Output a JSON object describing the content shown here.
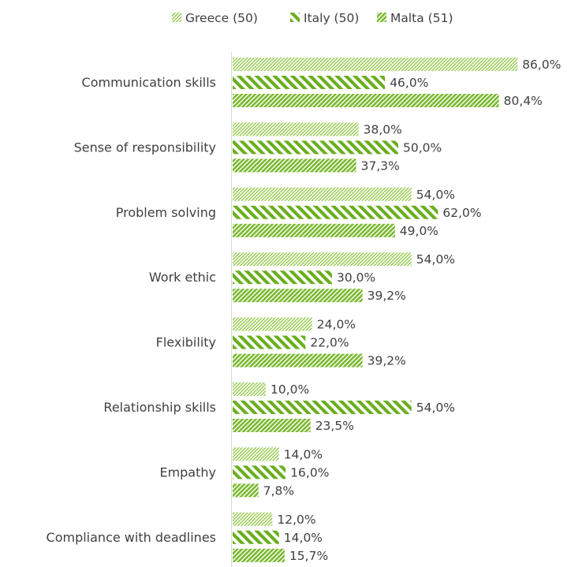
{
  "chart_data": {
    "type": "bar",
    "orientation": "horizontal",
    "categories": [
      "Communication skills",
      "Sense of responsibility",
      "Problem solving",
      "Work ethic",
      "Flexibility",
      "Relationship skills",
      "Empathy",
      "Compliance with deadlines"
    ],
    "series": [
      {
        "name": "Greece (50)",
        "values": [
          86.0,
          38.0,
          54.0,
          54.0,
          24.0,
          10.0,
          14.0,
          12.0
        ],
        "labels": [
          "86,0%",
          "38,0%",
          "54,0%",
          "54,0%",
          "24,0%",
          "10,0%",
          "14,0%",
          "12,0%"
        ],
        "pattern": "light-diagonal",
        "color": "#8DC63F"
      },
      {
        "name": "Italy (50)",
        "values": [
          46.0,
          50.0,
          62.0,
          30.0,
          22.0,
          54.0,
          16.0,
          14.0
        ],
        "labels": [
          "46,0%",
          "50,0%",
          "62,0%",
          "30,0%",
          "22,0%",
          "54,0%",
          "16,0%",
          "14,0%"
        ],
        "pattern": "wide-downward-diagonal",
        "color": "#6AAE1E"
      },
      {
        "name": "Malta (51)",
        "values": [
          80.4,
          37.3,
          49.0,
          39.2,
          39.2,
          23.5,
          7.8,
          15.7
        ],
        "labels": [
          "80,4%",
          "37,3%",
          "49,0%",
          "39,2%",
          "39,2%",
          "23,5%",
          "7,8%",
          "15,7%"
        ],
        "pattern": "dense-upward-diagonal",
        "color": "#7AB82E"
      }
    ],
    "xlim": [
      0,
      100
    ],
    "legend_position": "top",
    "grid": false
  }
}
